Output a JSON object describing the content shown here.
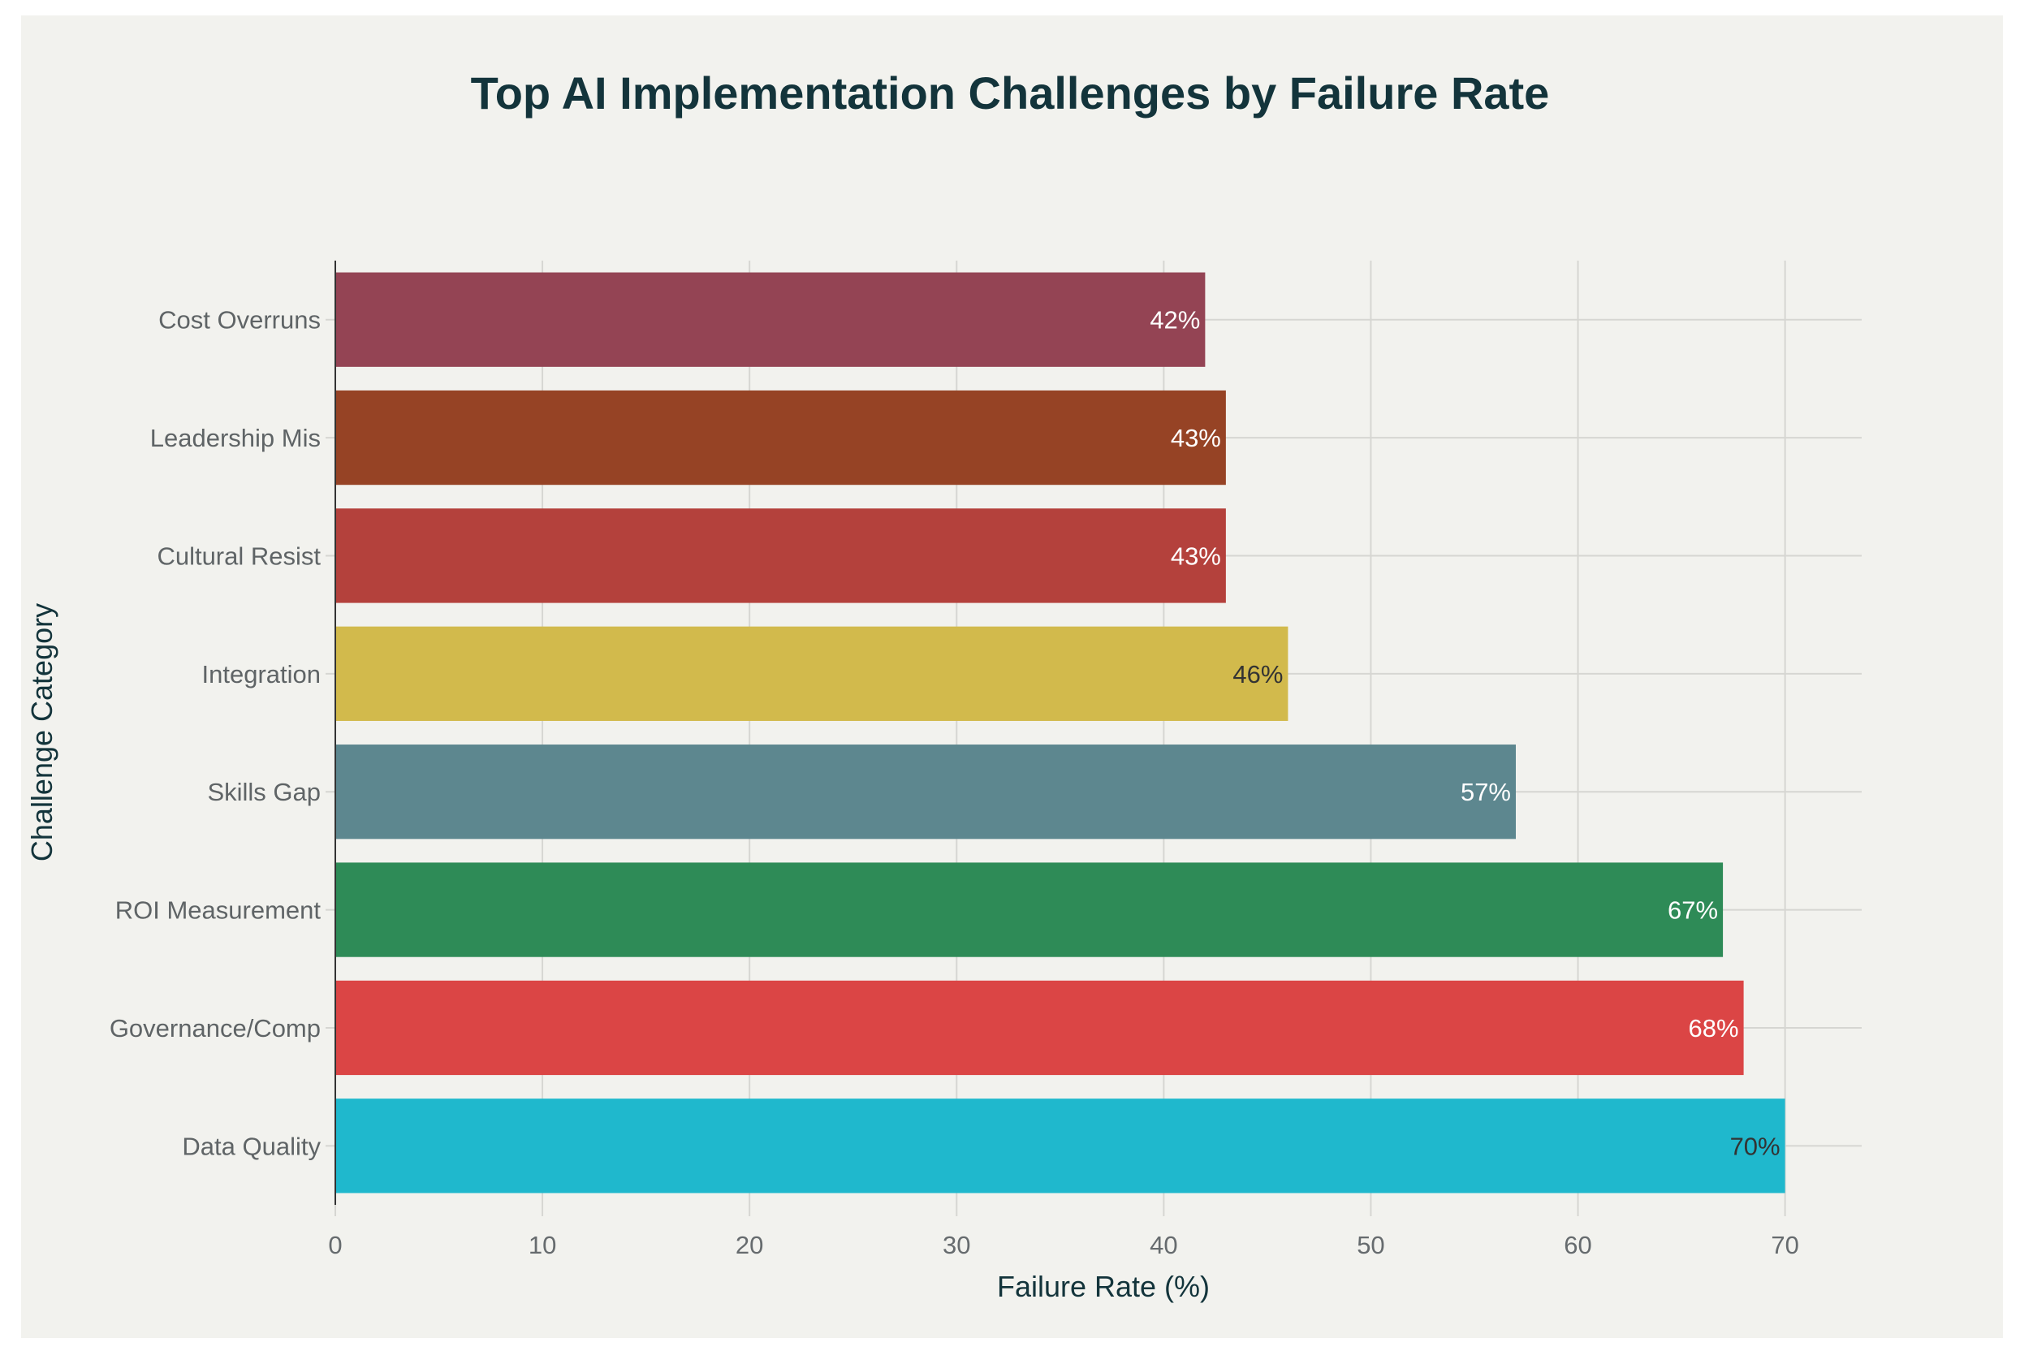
{
  "chart_data": {
    "type": "bar",
    "orientation": "horizontal",
    "title": "Top AI Implementation Challenges by Failure Rate",
    "xlabel": "Failure Rate (%)",
    "ylabel": "Challenge Category",
    "xlim": [
      0,
      73.7
    ],
    "xticks": [
      0,
      10,
      20,
      30,
      40,
      50,
      60,
      70
    ],
    "grid": true,
    "categories": [
      "Data Quality",
      "Governance/Comp",
      "ROI Measurement",
      "Skills Gap",
      "Integration",
      "Cultural Resist",
      "Leadership Mis",
      "Cost Overruns"
    ],
    "values": [
      70,
      68,
      67,
      57,
      46,
      43,
      43,
      42
    ],
    "data_labels": [
      "70%",
      "68%",
      "67%",
      "57%",
      "46%",
      "43%",
      "43%",
      "42%"
    ],
    "colors": [
      "#1FB8CD",
      "#DB4545",
      "#2E8B57",
      "#5D878F",
      "#D2BA4C",
      "#B4413C",
      "#964325",
      "#944454"
    ],
    "label_colors": [
      "#333333",
      "#ffffff",
      "#ffffff",
      "#ffffff",
      "#333333",
      "#ffffff",
      "#ffffff",
      "#ffffff"
    ]
  }
}
